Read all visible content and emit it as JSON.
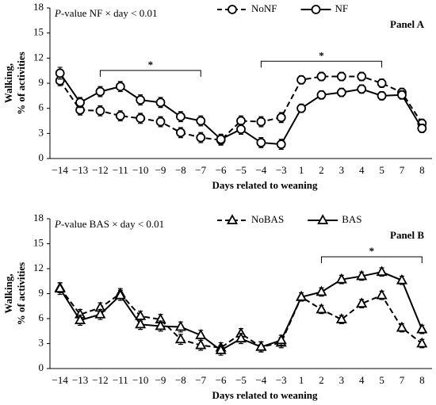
{
  "chart_data": [
    {
      "type": "line",
      "annotation": {
        "italic": "P",
        "text": "-value NF × day < 0.01"
      },
      "panel_label": "Panel A",
      "xlabel": "Days related to weaning",
      "ylabel": [
        "Walking,",
        "% of activities"
      ],
      "categories": [
        "−14",
        "−13",
        "−12",
        "−11",
        "−10",
        "−9",
        "−8",
        "−7",
        "−6",
        "−5",
        "−4",
        "−3",
        "1",
        "2",
        "3",
        "4",
        "5",
        "7",
        "8"
      ],
      "ylim": [
        0,
        18
      ],
      "yticks": [
        0,
        3,
        6,
        9,
        12,
        15,
        18
      ],
      "legend": "upper center",
      "series": [
        {
          "name": "NoNF",
          "color": "#000000",
          "marker": "circle",
          "linestyle": "dashed",
          "values": [
            9.3,
            5.8,
            5.7,
            5.1,
            4.8,
            4.4,
            3.1,
            2.5,
            2.2,
            4.5,
            4.4,
            4.9,
            9.4,
            9.8,
            9.8,
            9.8,
            9.0,
            7.9,
            4.2
          ],
          "errors": [
            0.6,
            0.6,
            0.6,
            0.6,
            0.6,
            0.6,
            0.6,
            0.6,
            0.6,
            0.6,
            0.6,
            0.6,
            0.5,
            0.5,
            0.5,
            0.5,
            0.5,
            0.5,
            0.5
          ]
        },
        {
          "name": "NF",
          "color": "#000000",
          "marker": "circle",
          "linestyle": "solid",
          "values": [
            10.2,
            6.7,
            8.0,
            8.6,
            7.0,
            6.7,
            5.0,
            4.5,
            2.3,
            3.5,
            1.9,
            1.7,
            6.0,
            7.6,
            7.9,
            8.3,
            7.5,
            7.6,
            3.6
          ],
          "errors": [
            0.7,
            0.6,
            0.6,
            0.6,
            0.6,
            0.6,
            0.6,
            0.6,
            0.6,
            0.6,
            0.6,
            0.6,
            0.5,
            0.5,
            0.5,
            0.5,
            0.5,
            0.5,
            0.5
          ]
        }
      ],
      "brackets": [
        {
          "from": "−12",
          "to": "−7",
          "label": "*"
        },
        {
          "from": "−4",
          "to": "5",
          "label": "*"
        }
      ]
    },
    {
      "type": "line",
      "annotation": {
        "italic": "P",
        "text": "-value BAS × day < 0.01"
      },
      "panel_label": "Panel B",
      "xlabel": "Days related to weaning",
      "ylabel": [
        "Walking,",
        "% of activities"
      ],
      "categories": [
        "−14",
        "−13",
        "−12",
        "−11",
        "−10",
        "−9",
        "−8",
        "−7",
        "−6",
        "−5",
        "−4",
        "−3",
        "1",
        "2",
        "3",
        "4",
        "5",
        "7",
        "8"
      ],
      "ylim": [
        0,
        18
      ],
      "yticks": [
        0,
        3,
        6,
        9,
        12,
        15,
        18
      ],
      "legend": "upper center",
      "series": [
        {
          "name": "NoBAS",
          "color": "#000000",
          "marker": "triangle",
          "linestyle": "dashed",
          "values": [
            9.7,
            6.5,
            7.3,
            9.0,
            6.3,
            5.9,
            3.5,
            2.8,
            2.5,
            4.2,
            2.6,
            3.1,
            8.6,
            7.1,
            5.9,
            7.8,
            8.8,
            4.9,
            3.0
          ],
          "errors": [
            0.6,
            0.6,
            0.6,
            0.6,
            0.6,
            0.6,
            0.6,
            0.6,
            0.6,
            0.6,
            0.6,
            0.6,
            0.5,
            0.5,
            0.5,
            0.5,
            0.5,
            0.5,
            0.5
          ]
        },
        {
          "name": "BAS",
          "color": "#000000",
          "marker": "triangle",
          "linestyle": "solid",
          "values": [
            9.6,
            5.8,
            6.5,
            8.8,
            5.3,
            5.1,
            5.0,
            4.0,
            2.2,
            3.6,
            2.6,
            3.4,
            8.6,
            9.2,
            10.7,
            11.1,
            11.6,
            10.6,
            4.7
          ],
          "errors": [
            0.7,
            0.6,
            0.6,
            0.6,
            0.6,
            0.6,
            0.6,
            0.6,
            0.6,
            0.6,
            0.6,
            0.6,
            0.5,
            0.5,
            0.5,
            0.5,
            0.5,
            0.5,
            0.5
          ]
        }
      ],
      "brackets": [
        {
          "from": "2",
          "to": "8",
          "label": "*"
        }
      ]
    }
  ]
}
